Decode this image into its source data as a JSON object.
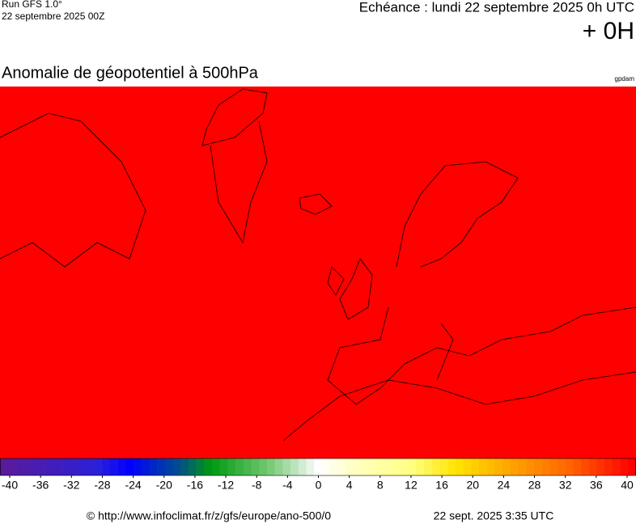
{
  "header": {
    "run": "Run GFS 1.0°",
    "run_date": "22 septembre 2025 00Z",
    "valid": "Echéance : lundi 22 septembre 2025 0h UTC",
    "lead": "+ 0H"
  },
  "map": {
    "title": "Anomalie de géopotentiel à 500hPa",
    "unit": "gpdam"
  },
  "colorbar": {
    "range": [
      -40,
      40
    ],
    "ticks": [
      -40,
      -36,
      -32,
      -28,
      -24,
      -20,
      -16,
      -12,
      -8,
      -4,
      0,
      4,
      8,
      12,
      16,
      20,
      24,
      28,
      32,
      36,
      40
    ]
  },
  "footer": {
    "source": "© http://www.infoclimat.fr/z/gfs/europe/ano-500/0",
    "generated": "22 sept. 2025  3:35 UTC"
  }
}
